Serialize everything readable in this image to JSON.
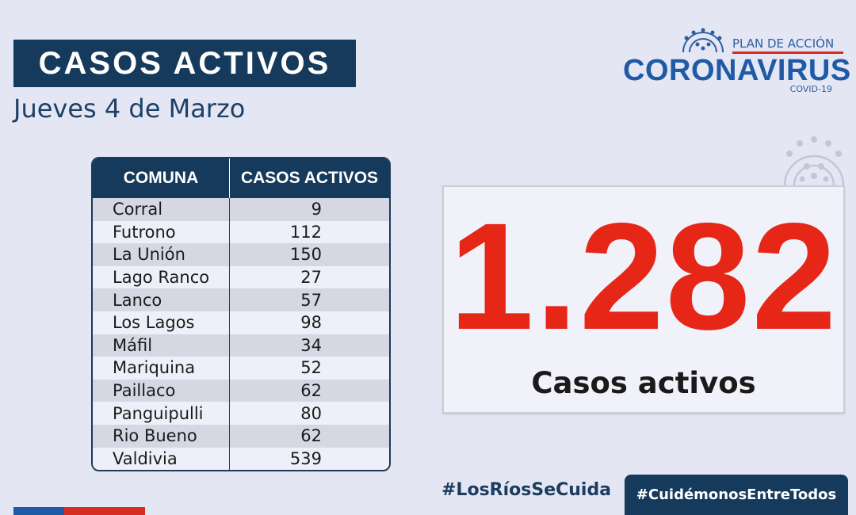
{
  "header": {
    "title": "CASOS ACTIVOS",
    "date": "Jueves 4  de Marzo"
  },
  "logo": {
    "plan": "PLAN DE ACCIÓN",
    "name": "CORONAVIRUS",
    "sub": "COVID-19"
  },
  "table": {
    "headers": [
      "COMUNA",
      "CASOS ACTIVOS"
    ],
    "rows": [
      {
        "comuna": "Corral",
        "casos": "9"
      },
      {
        "comuna": "Futrono",
        "casos": "112"
      },
      {
        "comuna": "La Unión",
        "casos": "150"
      },
      {
        "comuna": "Lago Ranco",
        "casos": "27"
      },
      {
        "comuna": "Lanco",
        "casos": "57"
      },
      {
        "comuna": "Los Lagos",
        "casos": "98"
      },
      {
        "comuna": "Máfil",
        "casos": "34"
      },
      {
        "comuna": "Mariquina",
        "casos": "52"
      },
      {
        "comuna": "Paillaco",
        "casos": "62"
      },
      {
        "comuna": "Panguipulli",
        "casos": "80"
      },
      {
        "comuna": "Rio Bueno",
        "casos": "62"
      },
      {
        "comuna": "Valdivia",
        "casos": "539"
      }
    ]
  },
  "total": {
    "value": "1.282",
    "label": "Casos activos"
  },
  "footer": {
    "hashtag_left": "#LosRíosSeCuida",
    "hashtag_right": "#CuidémonosEntreTodos"
  },
  "colors": {
    "background": "#e4e6f4",
    "navy": "#163a5c",
    "red": "#e62718",
    "blue": "#1f5aa6"
  },
  "icons": [
    "virus-icon",
    "virus-decoration-icon"
  ]
}
